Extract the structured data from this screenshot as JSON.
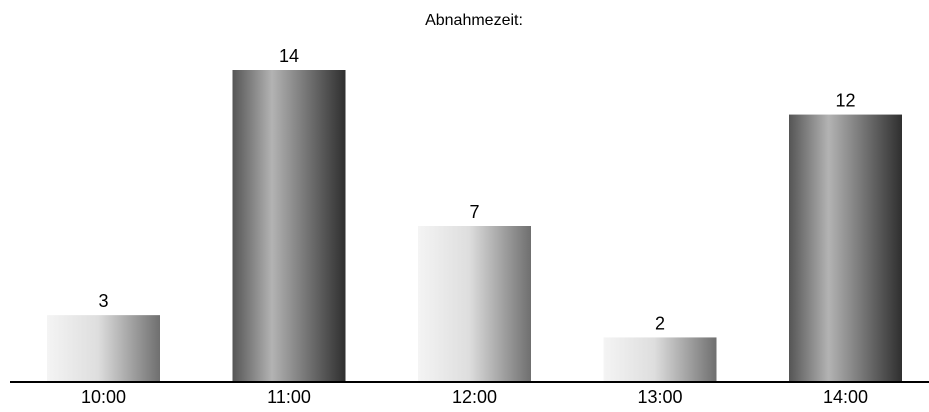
{
  "chart_data": {
    "type": "bar",
    "title": "Abnahmezeit:",
    "xlabel": "",
    "ylabel": "",
    "categories": [
      "10:00",
      "11:00",
      "12:00",
      "13:00",
      "14:00"
    ],
    "values": [
      3,
      14,
      7,
      2,
      12
    ],
    "data_labels": [
      "3",
      "14",
      "7",
      "2",
      "12"
    ],
    "ylim": [
      0,
      14
    ],
    "grid": false,
    "legend": "none",
    "bar_style": [
      "light-gradient",
      "dark-gradient",
      "light-gradient",
      "light-gradient",
      "dark-gradient"
    ],
    "colors": {
      "light_stops": [
        "#f4f4f4",
        "#dedede",
        "#6f6f6f"
      ],
      "dark_stops": [
        "#555555",
        "#b3b3b3",
        "#2f2f2f"
      ],
      "axis": "#000000",
      "text": "#000000"
    }
  }
}
